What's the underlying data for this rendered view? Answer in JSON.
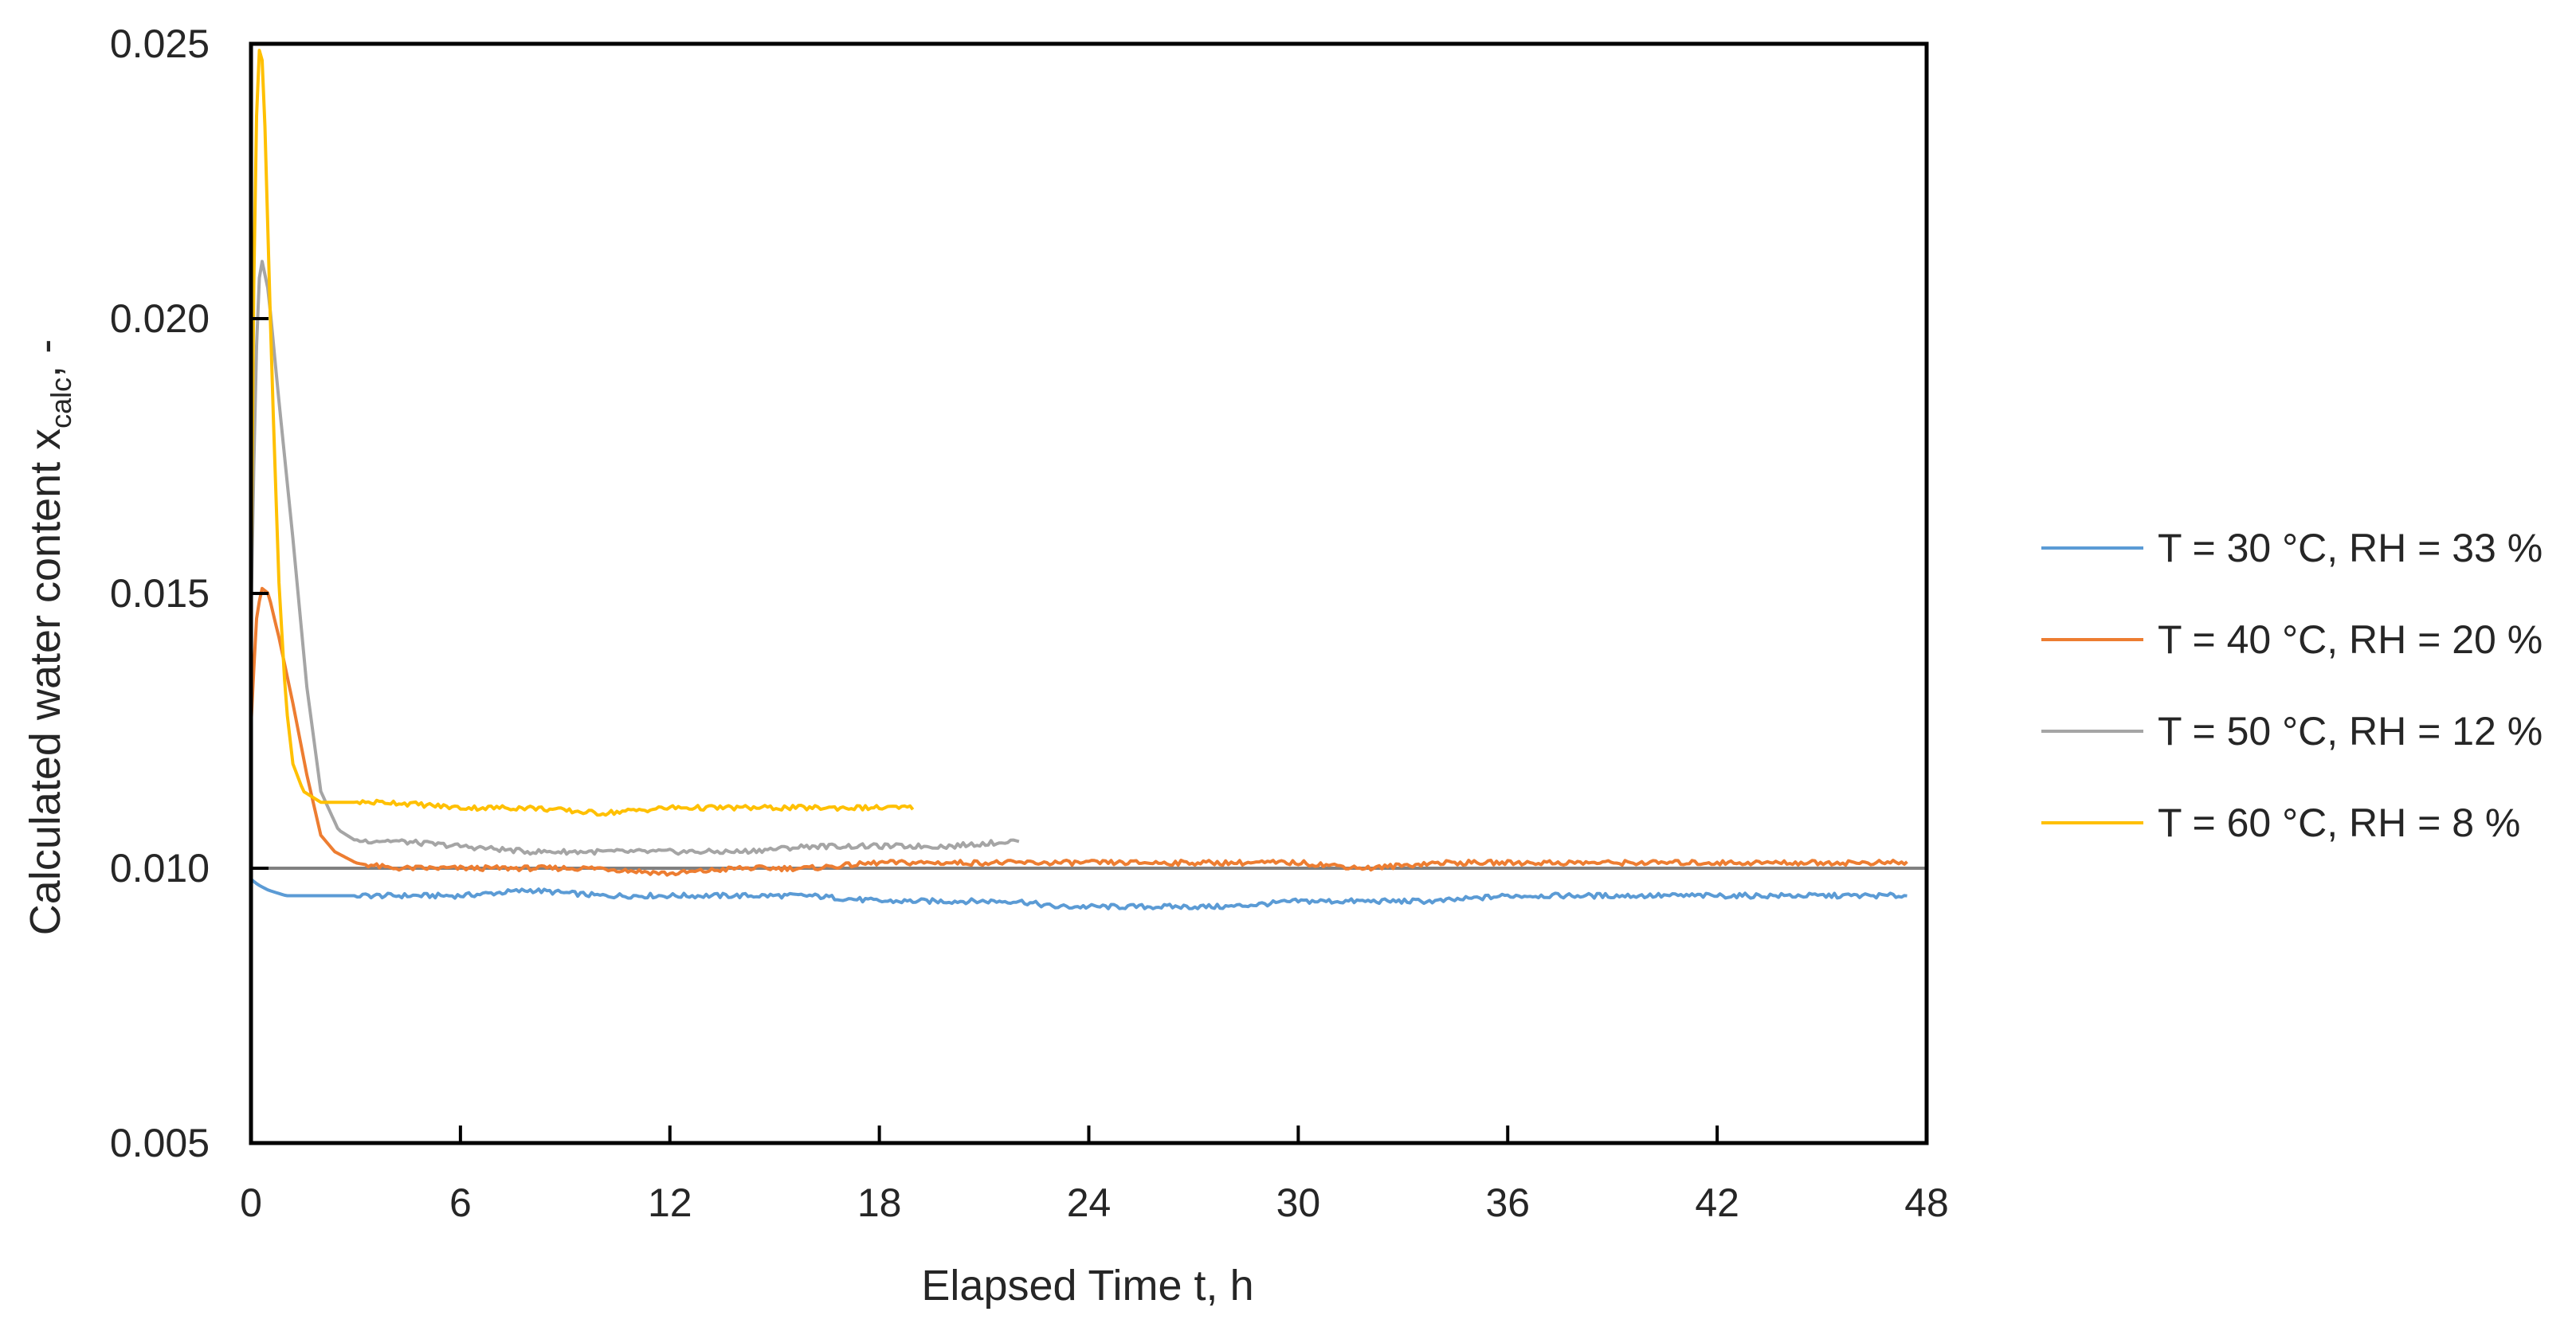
{
  "chart_data": {
    "type": "line",
    "title": "",
    "xlabel": "Elapsed Time t, h",
    "ylabel": "Calculated water content x",
    "ylabel_sub": "calc",
    "ylabel_tail": ", -",
    "xlim": [
      0,
      48
    ],
    "ylim": [
      0.005,
      0.025
    ],
    "x_ticks": [
      "0",
      "6",
      "12",
      "18",
      "24",
      "30",
      "36",
      "42",
      "48"
    ],
    "y_ticks": [
      "0.005",
      "0.010",
      "0.015",
      "0.020",
      "0.025"
    ],
    "grid": false,
    "legend_position": "right",
    "reference_line": {
      "y": 0.01,
      "color": "#808080"
    },
    "series": [
      {
        "name": "T = 30 °C, RH = 33 %",
        "color": "#5B9BD5",
        "x": [
          0,
          0.2,
          0.5,
          1,
          2,
          4,
          6,
          8,
          10,
          12,
          14,
          16,
          18,
          20,
          22,
          23,
          24,
          26,
          27,
          28,
          30,
          32,
          34,
          36,
          38,
          40,
          42,
          44,
          46,
          47.5
        ],
        "y": [
          0.0098,
          0.0097,
          0.0096,
          0.0095,
          0.0095,
          0.0095,
          0.0095,
          0.0096,
          0.0095,
          0.0095,
          0.0095,
          0.0095,
          0.0094,
          0.0094,
          0.0094,
          0.0093,
          0.0093,
          0.0093,
          0.0093,
          0.0093,
          0.0094,
          0.0094,
          0.0094,
          0.0095,
          0.0095,
          0.0095,
          0.0095,
          0.0095,
          0.0095,
          0.0095
        ]
      },
      {
        "name": "T = 40 °C, RH = 20 %",
        "color": "#ED7D31",
        "x": [
          0,
          0.15,
          0.3,
          0.5,
          0.8,
          1.2,
          1.6,
          2,
          2.4,
          3,
          4,
          6,
          8,
          10,
          12,
          14,
          16,
          18,
          20,
          22,
          24,
          26,
          28,
          30,
          32,
          34,
          36,
          38,
          40,
          42,
          44,
          46,
          47.5
        ],
        "y": [
          0.0126,
          0.0145,
          0.0151,
          0.015,
          0.0142,
          0.013,
          0.0117,
          0.0106,
          0.0103,
          0.0101,
          0.01,
          0.01,
          0.01,
          0.01,
          0.0099,
          0.01,
          0.01,
          0.0101,
          0.0101,
          0.0101,
          0.0101,
          0.0101,
          0.0101,
          0.0101,
          0.01,
          0.0101,
          0.0101,
          0.0101,
          0.0101,
          0.0101,
          0.0101,
          0.0101,
          0.0101
        ]
      },
      {
        "name": "T = 50 °C, RH = 12 %",
        "color": "#A5A5A5",
        "x": [
          0,
          0.1,
          0.2,
          0.3,
          0.5,
          0.8,
          1.2,
          1.6,
          2,
          2.5,
          3,
          4,
          6,
          8,
          10,
          12,
          14,
          16,
          18,
          20,
          22
        ],
        "y": [
          0.0145,
          0.018,
          0.0205,
          0.0211,
          0.0205,
          0.0185,
          0.016,
          0.0133,
          0.0114,
          0.0107,
          0.0105,
          0.0105,
          0.0104,
          0.0103,
          0.0103,
          0.0103,
          0.0103,
          0.0104,
          0.0104,
          0.0104,
          0.0105
        ]
      },
      {
        "name": "T = 60 °C, RH = 8 %",
        "color": "#FFC000",
        "x": [
          0,
          0.1,
          0.2,
          0.3,
          0.4,
          0.6,
          0.8,
          1,
          1.2,
          1.5,
          2,
          3,
          4,
          6,
          8,
          10,
          12,
          14,
          16,
          18,
          19
        ],
        "y": [
          0.015,
          0.022,
          0.0248,
          0.025,
          0.0235,
          0.019,
          0.0152,
          0.013,
          0.0119,
          0.0114,
          0.0112,
          0.0112,
          0.0112,
          0.0111,
          0.0111,
          0.011,
          0.0111,
          0.0111,
          0.0111,
          0.0111,
          0.0111
        ]
      }
    ]
  }
}
